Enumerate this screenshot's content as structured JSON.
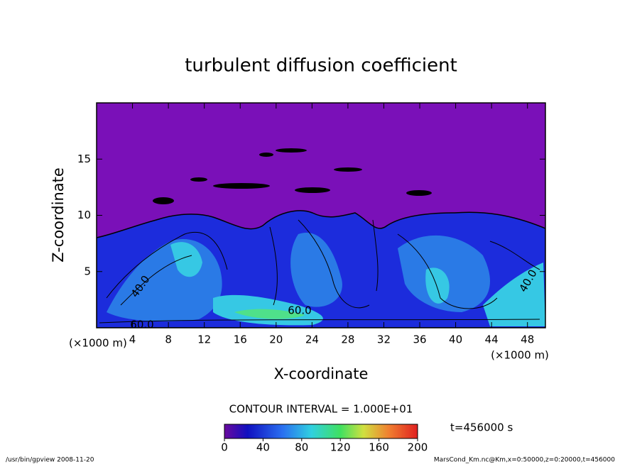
{
  "chart_data": {
    "type": "contour",
    "title": "turbulent diffusion coefficient",
    "xlabel": "X-coordinate",
    "ylabel": "Z-coordinate",
    "x_unit": "(×1000 m)",
    "y_unit": "(×1000 m)",
    "xlim": [
      0,
      50
    ],
    "xticks": [
      4,
      8,
      12,
      16,
      20,
      24,
      28,
      32,
      36,
      40,
      44,
      48
    ],
    "ylim": [
      0,
      20
    ],
    "yticks": [
      5,
      10,
      15
    ],
    "contour_interval": "CONTOUR INTERVAL = 1.000E+01",
    "contour_labels": [
      "60.0",
      "40.0",
      "60.0",
      "40.0"
    ],
    "clim": [
      0,
      200
    ],
    "cticks": [
      0,
      40,
      80,
      120,
      160,
      200
    ],
    "time_label": "t=456000 s",
    "footer_left": "/usr/bin/gpview  2008-11-20",
    "footer_right": "MarsCond_Km.nc@Km,x=0:50000,z=0:20000,t=456000"
  }
}
